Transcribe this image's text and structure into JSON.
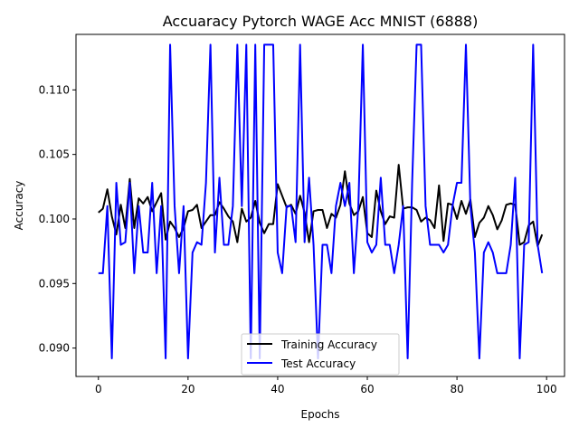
{
  "chart_data": {
    "type": "line",
    "title": "Accuaracy Pytorch WAGE Acc MNIST (6888)",
    "xlabel": "Epochs",
    "ylabel": "Accuracy",
    "xlim": [
      -5,
      104
    ],
    "ylim": [
      0.0878,
      0.1143
    ],
    "xticks": [
      0,
      20,
      40,
      60,
      80,
      100
    ],
    "yticks": [
      0.09,
      0.095,
      0.1,
      0.105,
      0.11
    ],
    "xtick_labels": [
      "0",
      "20",
      "40",
      "60",
      "80",
      "100"
    ],
    "ytick_labels": [
      "0.090",
      "0.095",
      "0.100",
      "0.105",
      "0.110"
    ],
    "grid": false,
    "legend_position": "bottom-center",
    "x": [
      0,
      1,
      2,
      3,
      4,
      5,
      6,
      7,
      8,
      9,
      10,
      11,
      12,
      13,
      14,
      15,
      16,
      17,
      18,
      19,
      20,
      21,
      22,
      23,
      24,
      25,
      26,
      27,
      28,
      29,
      30,
      31,
      32,
      33,
      34,
      35,
      36,
      37,
      38,
      39,
      40,
      41,
      42,
      43,
      44,
      45,
      46,
      47,
      48,
      49,
      50,
      51,
      52,
      53,
      54,
      55,
      56,
      57,
      58,
      59,
      60,
      61,
      62,
      63,
      64,
      65,
      66,
      67,
      68,
      69,
      70,
      71,
      72,
      73,
      74,
      75,
      76,
      77,
      78,
      79,
      80,
      81,
      82,
      83,
      84,
      85,
      86,
      87,
      88,
      89,
      90,
      91,
      92,
      93,
      94,
      95,
      96,
      97,
      98,
      99
    ],
    "series": [
      {
        "name": "Training Accuracy",
        "color": "#000000",
        "values": [
          0.1005,
          0.1008,
          0.1023,
          0.1002,
          0.0988,
          0.1011,
          0.0993,
          0.1031,
          0.0993,
          0.1016,
          0.1012,
          0.1017,
          0.1006,
          0.1013,
          0.102,
          0.0984,
          0.0998,
          0.0993,
          0.0986,
          0.0993,
          0.1006,
          0.1007,
          0.1011,
          0.0993,
          0.0998,
          0.1003,
          0.1003,
          0.1013,
          0.1008,
          0.1002,
          0.0998,
          0.0982,
          0.1008,
          0.0998,
          0.1001,
          0.1014,
          0.0997,
          0.0989,
          0.0996,
          0.0996,
          0.1027,
          0.1018,
          0.1009,
          0.1011,
          0.1004,
          0.1018,
          0.1005,
          0.0982,
          0.1006,
          0.1007,
          0.1007,
          0.0993,
          0.1004,
          0.1001,
          0.1011,
          0.1037,
          0.1012,
          0.1003,
          0.1006,
          0.1017,
          0.0989,
          0.0986,
          0.1022,
          0.1006,
          0.0996,
          0.1002,
          0.1001,
          0.1042,
          0.1008,
          0.1009,
          0.1009,
          0.1007,
          0.0998,
          0.1001,
          0.0999,
          0.0993,
          0.1026,
          0.0983,
          0.1012,
          0.1011,
          0.1,
          0.1014,
          0.1004,
          0.1015,
          0.0986,
          0.0997,
          0.1001,
          0.101,
          0.1003,
          0.0992,
          0.0999,
          0.1011,
          0.1012,
          0.1011,
          0.098,
          0.0982,
          0.0995,
          0.0998,
          0.0979,
          0.0988
        ]
      },
      {
        "name": "Test Accuracy",
        "color": "#0000ff",
        "values": [
          0.0958,
          0.0958,
          0.101,
          0.0892,
          0.1028,
          0.098,
          0.0982,
          0.1028,
          0.0958,
          0.101,
          0.0974,
          0.0974,
          0.1028,
          0.0958,
          0.101,
          0.0892,
          0.1135,
          0.101,
          0.0958,
          0.101,
          0.0892,
          0.0974,
          0.0982,
          0.098,
          0.1028,
          0.1135,
          0.0974,
          0.1032,
          0.098,
          0.098,
          0.101,
          0.1135,
          0.101,
          0.1135,
          0.0892,
          0.1135,
          0.0892,
          0.1135,
          0.1135,
          0.1135,
          0.0974,
          0.0958,
          0.101,
          0.101,
          0.0982,
          0.1135,
          0.0982,
          0.1032,
          0.098,
          0.0892,
          0.098,
          0.098,
          0.0958,
          0.101,
          0.1028,
          0.101,
          0.1028,
          0.0958,
          0.101,
          0.1135,
          0.0982,
          0.0974,
          0.098,
          0.1032,
          0.098,
          0.098,
          0.0958,
          0.098,
          0.101,
          0.0892,
          0.1028,
          0.1135,
          0.1135,
          0.101,
          0.098,
          0.098,
          0.098,
          0.0974,
          0.098,
          0.101,
          0.1028,
          0.1028,
          0.1135,
          0.101,
          0.0974,
          0.0892,
          0.0974,
          0.0982,
          0.0974,
          0.0958,
          0.0958,
          0.0958,
          0.098,
          0.1032,
          0.0892,
          0.098,
          0.0982,
          0.1135,
          0.098,
          0.0958
        ]
      }
    ]
  }
}
